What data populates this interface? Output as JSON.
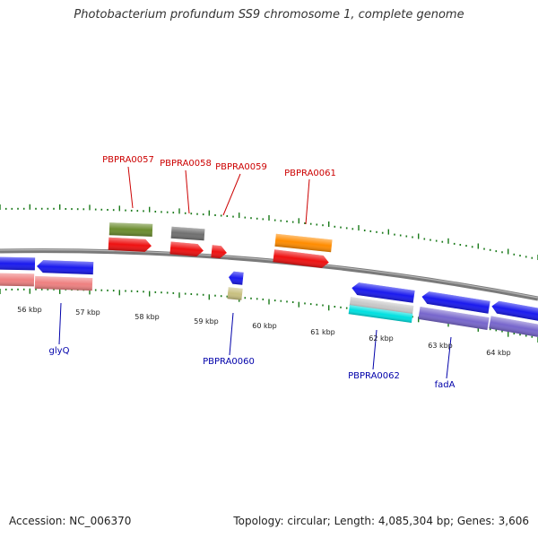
{
  "title": "Photobacterium profundum SS9 chromosome 1, complete genome",
  "footer": {
    "accession": "Accession: NC_006370",
    "summary": "Topology: circular; Length: 4,085,304 bp; Genes: 3,606"
  },
  "colors": {
    "backbone": "#808080",
    "tick": "#1a7a1a",
    "forward_label": "#cc0000",
    "reverse_label": "#0000aa",
    "cds_blue": "#1a1aee",
    "rna_red": "#ee1111",
    "salmon": "#ee8080",
    "olive": "#6b8c2e",
    "gray": "#707070",
    "orange": "#ff8c00",
    "tan": "#c8c080",
    "light_gray": "#c8c8c8",
    "cyan": "#00e0e0",
    "purple": "#7766cc"
  },
  "kbp_labels": [
    "56 kbp",
    "57 kbp",
    "58 kbp",
    "59 kbp",
    "60 kbp",
    "61 kbp",
    "62 kbp",
    "63 kbp",
    "64 kbp"
  ],
  "gene_labels": {
    "pbpra0057": "PBPRA0057",
    "pbpra0058": "PBPRA0058",
    "pbpra0059": "PBPRA0059",
    "pbpra0061": "PBPRA0061",
    "glyq": "glyQ",
    "pbpra0060": "PBPRA0060",
    "pbpra0062": "PBPRA0062",
    "fada": "fadA"
  }
}
